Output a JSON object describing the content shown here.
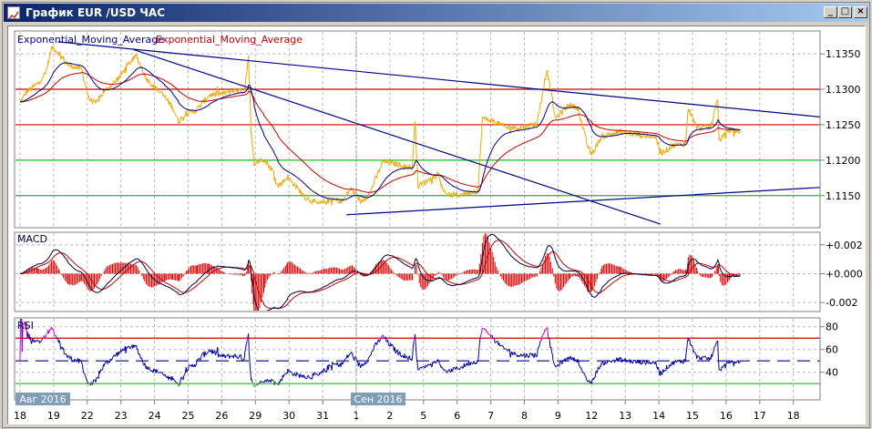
{
  "window": {
    "title": "График EUR /USD  ЧАС",
    "buttons": {
      "minimize": "_",
      "maximize": "□",
      "close": "×"
    }
  },
  "legend": {
    "ema_fast": "Exponential_Moving_Average",
    "ema_slow": "Exponential_Moving_Average",
    "ema_fast_color": "#00008b",
    "ema_slow_color": "#cc0000"
  },
  "x_axis": {
    "ticks": [
      {
        "label": "18",
        "date": "2016-08-18"
      },
      {
        "label": "19",
        "date": "2016-08-19"
      },
      {
        "label": "22",
        "date": "2016-08-22"
      },
      {
        "label": "23",
        "date": "2016-08-23"
      },
      {
        "label": "24",
        "date": "2016-08-24"
      },
      {
        "label": "25",
        "date": "2016-08-25"
      },
      {
        "label": "26",
        "date": "2016-08-26"
      },
      {
        "label": "29",
        "date": "2016-08-29"
      },
      {
        "label": "30",
        "date": "2016-08-30"
      },
      {
        "label": "31",
        "date": "2016-08-31"
      },
      {
        "label": "1",
        "date": "2016-09-01"
      },
      {
        "label": "2",
        "date": "2016-09-02"
      },
      {
        "label": "5",
        "date": "2016-09-05"
      },
      {
        "label": "6",
        "date": "2016-09-06"
      },
      {
        "label": "7",
        "date": "2016-09-07"
      },
      {
        "label": "8",
        "date": "2016-09-08"
      },
      {
        "label": "9",
        "date": "2016-09-09"
      },
      {
        "label": "12",
        "date": "2016-09-12"
      },
      {
        "label": "13",
        "date": "2016-09-13"
      },
      {
        "label": "14",
        "date": "2016-09-14"
      },
      {
        "label": "15",
        "date": "2016-09-15"
      },
      {
        "label": "16",
        "date": "2016-09-16"
      },
      {
        "label": "17",
        "date": "2016-09-17"
      },
      {
        "label": "18",
        "date": "2016-09-18"
      }
    ],
    "month_tags": [
      {
        "label": "Авг 2016",
        "date": "2016-08-18"
      },
      {
        "label": "Сен 2016",
        "date": "2016-09-01"
      }
    ]
  },
  "chart_data": [
    {
      "type": "line",
      "panel": "price",
      "ylim": [
        1.1106,
        1.1381
      ],
      "y_ticks": [
        "1.1350",
        "1.1300",
        "1.1250",
        "1.1200",
        "1.1150"
      ],
      "grid": true,
      "legend_placement": "top-left",
      "price_color": "#f0a800",
      "series": [
        [
          "2016-08-18 00:00",
          1.1281
        ],
        [
          "2016-08-18 05:00",
          1.1297
        ],
        [
          "2016-08-18 12:00",
          1.1307
        ],
        [
          "2016-08-18 18:00",
          1.1322
        ],
        [
          "2016-08-18 23:00",
          1.136
        ],
        [
          "2016-08-19 04:00",
          1.135
        ],
        [
          "2016-08-19 10:00",
          1.1335
        ],
        [
          "2016-08-19 20:00",
          1.1328
        ],
        [
          "2016-08-22 01:00",
          1.1287
        ],
        [
          "2016-08-22 06:00",
          1.128
        ],
        [
          "2016-08-22 12:00",
          1.1297
        ],
        [
          "2016-08-22 19:00",
          1.1309
        ],
        [
          "2016-08-23 00:00",
          1.132
        ],
        [
          "2016-08-23 05:00",
          1.1335
        ],
        [
          "2016-08-23 11:00",
          1.1347
        ],
        [
          "2016-08-23 18:00",
          1.1316
        ],
        [
          "2016-08-24 00:00",
          1.1303
        ],
        [
          "2016-08-24 07:00",
          1.129
        ],
        [
          "2016-08-24 13:00",
          1.1274
        ],
        [
          "2016-08-24 17:00",
          1.1255
        ],
        [
          "2016-08-24 23:00",
          1.1265
        ],
        [
          "2016-08-25 06:00",
          1.1271
        ],
        [
          "2016-08-25 15:00",
          1.1292
        ],
        [
          "2016-08-26 01:00",
          1.1294
        ],
        [
          "2016-08-26 10:00",
          1.1299
        ],
        [
          "2016-08-26 16:00",
          1.1297
        ],
        [
          "2016-08-26 19:00",
          1.1345
        ],
        [
          "2016-08-26 21:00",
          1.124
        ],
        [
          "2016-08-26 23:00",
          1.1195
        ],
        [
          "2016-08-29 06:00",
          1.1202
        ],
        [
          "2016-08-29 13:00",
          1.1183
        ],
        [
          "2016-08-29 16:00",
          1.1163
        ],
        [
          "2016-08-29 23:00",
          1.1176
        ],
        [
          "2016-08-30 05:00",
          1.1163
        ],
        [
          "2016-08-30 12:00",
          1.1147
        ],
        [
          "2016-08-30 21:00",
          1.1138
        ],
        [
          "2016-08-31 07:00",
          1.1144
        ],
        [
          "2016-08-31 14:00",
          1.1142
        ],
        [
          "2016-08-31 20:00",
          1.116
        ],
        [
          "2016-09-01 03:00",
          1.1142
        ],
        [
          "2016-09-01 09:00",
          1.1151
        ],
        [
          "2016-09-01 19:00",
          1.1198
        ],
        [
          "2016-09-02 08:00",
          1.1193
        ],
        [
          "2016-09-02 16:00",
          1.1189
        ],
        [
          "2016-09-02 18:00",
          1.1259
        ],
        [
          "2016-09-02 20:00",
          1.1163
        ],
        [
          "2016-09-05 02:00",
          1.117
        ],
        [
          "2016-09-05 10:00",
          1.118
        ],
        [
          "2016-09-05 16:00",
          1.1151
        ],
        [
          "2016-09-06 02:00",
          1.1151
        ],
        [
          "2016-09-06 09:00",
          1.1155
        ],
        [
          "2016-09-06 15:00",
          1.1157
        ],
        [
          "2016-09-06 18:00",
          1.1259
        ],
        [
          "2016-09-07 01:00",
          1.1256
        ],
        [
          "2016-09-07 11:00",
          1.1246
        ],
        [
          "2016-09-07 23:00",
          1.1246
        ],
        [
          "2016-09-08 09:00",
          1.1252
        ],
        [
          "2016-09-08 16:00",
          1.1328
        ],
        [
          "2016-09-08 19:00",
          1.1297
        ],
        [
          "2016-09-08 22:00",
          1.1259
        ],
        [
          "2016-09-09 08:00",
          1.1278
        ],
        [
          "2016-09-09 14:00",
          1.1274
        ],
        [
          "2016-09-09 21:00",
          1.1221
        ],
        [
          "2016-09-12 00:00",
          1.1208
        ],
        [
          "2016-09-12 07:00",
          1.1233
        ],
        [
          "2016-09-12 20:00",
          1.124
        ],
        [
          "2016-09-13 09:00",
          1.1236
        ],
        [
          "2016-09-13 22:00",
          1.1233
        ],
        [
          "2016-09-14 01:00",
          1.121
        ],
        [
          "2016-09-14 11:00",
          1.1221
        ],
        [
          "2016-09-14 19:00",
          1.1223
        ],
        [
          "2016-09-14 21:00",
          1.1274
        ],
        [
          "2016-09-15 03:00",
          1.1246
        ],
        [
          "2016-09-15 13:00",
          1.1246
        ],
        [
          "2016-09-15 18:00",
          1.1287
        ],
        [
          "2016-09-15 19:00",
          1.1227
        ],
        [
          "2016-09-16 02:00",
          1.1243
        ],
        [
          "2016-09-16 10:00",
          1.124
        ]
      ],
      "indicators": [
        {
          "name": "Exponential_Moving_Average",
          "color": "#00008b"
        },
        {
          "name": "Exponential_Moving_Average",
          "color": "#cc0000"
        }
      ],
      "levels": [
        {
          "value": 1.13,
          "color": "#d00000"
        },
        {
          "value": 1.125,
          "color": "#d00000"
        },
        {
          "value": 1.12,
          "color": "#22bb22"
        },
        {
          "value": 1.115,
          "color": "#22bb22"
        }
      ],
      "trendlines": [
        {
          "from": [
            "2016-08-19 03:00",
            1.1367
          ],
          "to": [
            "2016-09-08 16:00",
            1.1299
          ],
          "extend": "right",
          "color": "#00008b"
        },
        {
          "from": [
            "2016-08-23 09:00",
            1.1356
          ],
          "to": [
            "2016-09-14 01:00",
            1.111
          ],
          "extend": "none",
          "color": "#00008b"
        },
        {
          "from": [
            "2016-08-31 17:00",
            1.1123
          ],
          "to": [
            "2016-09-16 10:00",
            1.1155
          ],
          "extend": "right",
          "color": "#00008b"
        }
      ]
    },
    {
      "type": "line",
      "panel": "macd",
      "title": "MACD",
      "ylim": [
        -0.00256,
        0.00281
      ],
      "y_ticks": [
        "+0.002",
        "+0.000",
        "-0.002"
      ],
      "y_tick_values": [
        0.002,
        0,
        -0.002
      ],
      "macd_color": "#000040",
      "signal_color": "#cc0000",
      "histogram_color": "#dd0000"
    },
    {
      "type": "line",
      "panel": "rsi",
      "title": "RSI",
      "ylim": [
        16.5,
        87
      ],
      "y_ticks": [
        "80",
        "60",
        "40"
      ],
      "y_tick_values": [
        80,
        60,
        40
      ],
      "levels": [
        {
          "value": 70,
          "color": "#cc0000"
        },
        {
          "value": 50,
          "color": "#00008b",
          "style": "dashed"
        },
        {
          "value": 30,
          "color": "#22cc22"
        }
      ],
      "line_color": "#0000aa",
      "overbought_color": "#cc00cc",
      "oversold_color": "#22cc22"
    }
  ]
}
